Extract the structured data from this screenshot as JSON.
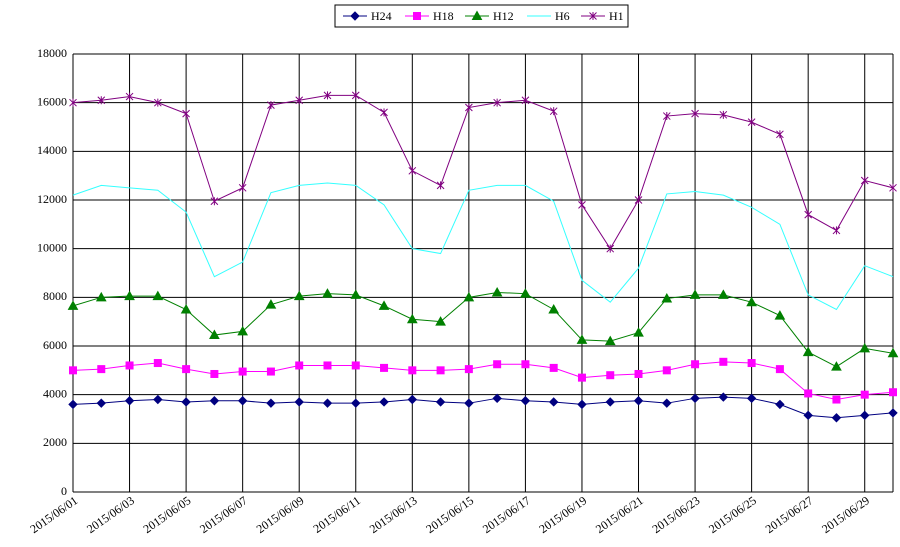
{
  "chart_data": {
    "type": "line",
    "categories": [
      "2015/06/01",
      null,
      "2015/06/03",
      null,
      "2015/06/05",
      null,
      "2015/06/07",
      null,
      "2015/06/09",
      null,
      "2015/06/11",
      null,
      "2015/06/13",
      null,
      "2015/06/15",
      null,
      "2015/06/17",
      null,
      "2015/06/19",
      null,
      "2015/06/21",
      null,
      "2015/06/23",
      null,
      "2015/06/25",
      null,
      "2015/06/27",
      null,
      "2015/06/29",
      null
    ],
    "series": [
      {
        "name": "H24",
        "color": "#000080",
        "marker": "diamond",
        "values": [
          3600,
          3650,
          3750,
          3800,
          3700,
          3750,
          3750,
          3650,
          3700,
          3650,
          3650,
          3700,
          3800,
          3700,
          3650,
          3850,
          3750,
          3700,
          3600,
          3700,
          3750,
          3650,
          3850,
          3900,
          3850,
          3600,
          3150,
          3050,
          3150,
          3250
        ]
      },
      {
        "name": "H18",
        "color": "#ff00ff",
        "marker": "square",
        "values": [
          5000,
          5050,
          5200,
          5300,
          5050,
          4850,
          4950,
          4950,
          5200,
          5200,
          5200,
          5100,
          5000,
          5000,
          5050,
          5250,
          5250,
          5100,
          4700,
          4800,
          4850,
          5000,
          5250,
          5350,
          5300,
          5050,
          4050,
          3800,
          4000,
          4100
        ]
      },
      {
        "name": "H12",
        "color": "#008000",
        "marker": "triangle",
        "values": [
          7650,
          8000,
          8050,
          8050,
          7500,
          6450,
          6600,
          7700,
          8050,
          8150,
          8100,
          7650,
          7100,
          7000,
          8000,
          8200,
          8150,
          7500,
          6250,
          6200,
          6550,
          7950,
          8100,
          8100,
          7800,
          7250,
          5750,
          5150,
          5900,
          5700
        ]
      },
      {
        "name": "H6",
        "color": "#33ffff",
        "marker": "none",
        "values": [
          12200,
          12600,
          12500,
          12400,
          11500,
          8850,
          9450,
          12300,
          12600,
          12700,
          12600,
          11800,
          10000,
          9800,
          12400,
          12600,
          12600,
          11950,
          8700,
          7800,
          9200,
          12250,
          12350,
          12200,
          11700,
          11000,
          8100,
          7500,
          9300,
          8850
        ]
      },
      {
        "name": "H1",
        "color": "#800080",
        "marker": "star",
        "values": [
          16000,
          16100,
          16250,
          16000,
          15550,
          11950,
          12500,
          15900,
          16100,
          16300,
          16300,
          15600,
          13200,
          12600,
          15800,
          16000,
          16100,
          15650,
          11800,
          10000,
          12000,
          15450,
          15550,
          15500,
          15200,
          14700,
          11400,
          10750,
          12800,
          12500
        ]
      }
    ],
    "ylim": [
      0,
      18000
    ],
    "yticks": [
      0,
      2000,
      4000,
      6000,
      8000,
      10000,
      12000,
      14000,
      16000,
      18000
    ],
    "grid": true,
    "legend": "top"
  }
}
